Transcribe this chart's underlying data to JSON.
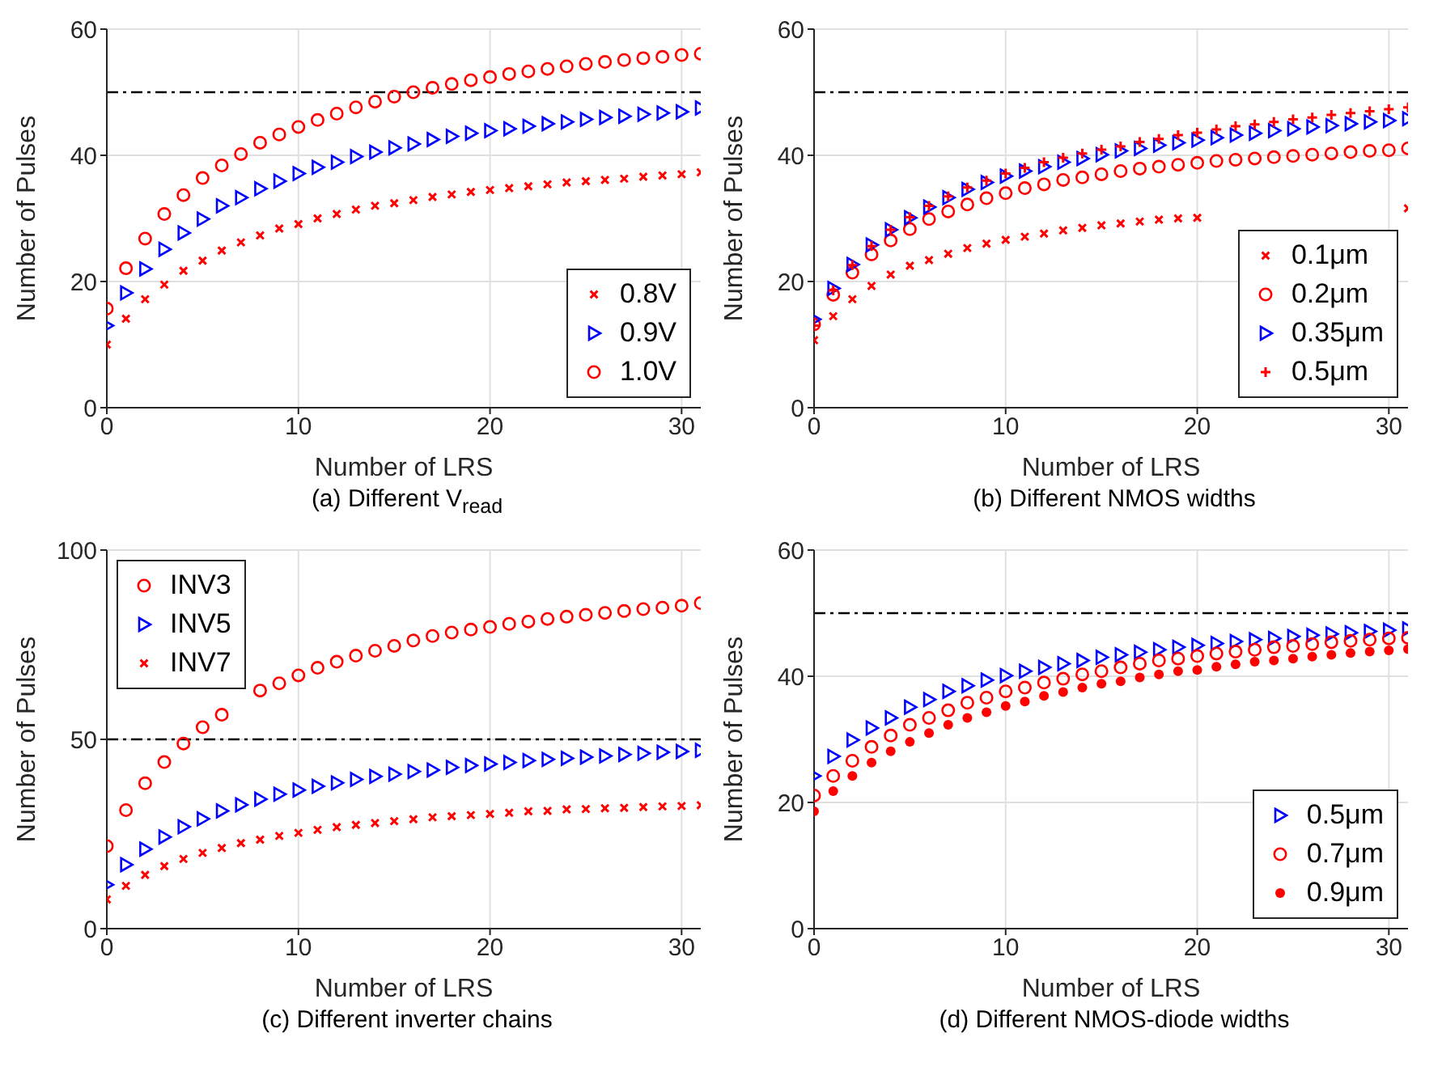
{
  "chart_data": [
    {
      "type": "scatter",
      "title": "(a) Different V$_{read}$",
      "xlabel": "Number of LRS",
      "ylabel": "Number of Pulses",
      "xlim": [
        0,
        31
      ],
      "xticks": [
        0,
        10,
        20,
        30
      ],
      "ylim": [
        0,
        60
      ],
      "yticks": [
        0,
        20,
        40,
        60
      ],
      "grid": true,
      "legend": "bottom right",
      "ref_lines": [
        {
          "axis": "y",
          "value": 50,
          "color": "#000000",
          "line_style": "dashed"
        }
      ],
      "x": [
        0,
        1,
        2,
        3,
        4,
        5,
        6,
        7,
        8,
        9,
        10,
        11,
        12,
        13,
        14,
        15,
        16,
        17,
        18,
        19,
        20,
        21,
        22,
        23,
        24,
        25,
        26,
        27,
        28,
        29,
        30,
        31
      ],
      "series": [
        {
          "name": "0.8V",
          "color": "#ff0000",
          "marker": "cross",
          "values": [
            10.0,
            14.1,
            17.2,
            19.5,
            21.7,
            23.3,
            24.9,
            26.2,
            27.3,
            28.4,
            29.1,
            30.0,
            30.7,
            31.4,
            32.0,
            32.4,
            32.9,
            33.4,
            33.8,
            34.2,
            34.5,
            34.8,
            35.1,
            35.4,
            35.7,
            35.9,
            36.1,
            36.3,
            36.6,
            36.8,
            37.0,
            37.3
          ]
        },
        {
          "name": "0.9V",
          "color": "#0000ff",
          "marker": "triangle",
          "values": [
            13.0,
            18.2,
            22.0,
            25.1,
            27.7,
            29.9,
            32.0,
            33.3,
            34.7,
            35.9,
            37.1,
            38.1,
            38.9,
            39.8,
            40.5,
            41.2,
            41.8,
            42.5,
            43.0,
            43.5,
            43.9,
            44.2,
            44.6,
            45.0,
            45.3,
            45.7,
            46.0,
            46.2,
            46.5,
            46.7,
            46.9,
            47.5
          ]
        },
        {
          "name": "1.0V",
          "color": "#ff0000",
          "marker": "circle",
          "values": [
            15.7,
            22.1,
            26.8,
            30.7,
            33.7,
            36.4,
            38.4,
            40.2,
            42.0,
            43.3,
            44.5,
            45.6,
            46.6,
            47.6,
            48.5,
            49.3,
            50.0,
            50.7,
            51.3,
            51.9,
            52.4,
            52.9,
            53.3,
            53.7,
            54.1,
            54.5,
            54.8,
            55.1,
            55.4,
            55.6,
            55.9,
            56.1
          ]
        }
      ]
    },
    {
      "type": "scatter",
      "title": "(b) Different NMOS widths",
      "xlabel": "Number of LRS",
      "ylabel": "Number of Pulses",
      "xlim": [
        0,
        31
      ],
      "xticks": [
        0,
        10,
        20,
        30
      ],
      "ylim": [
        0,
        60
      ],
      "yticks": [
        0,
        20,
        40,
        60
      ],
      "grid": true,
      "legend": "bottom right",
      "ref_lines": [
        {
          "axis": "y",
          "value": 50,
          "color": "#000000",
          "line_style": "dashed"
        }
      ],
      "x": [
        0,
        1,
        2,
        3,
        4,
        5,
        6,
        7,
        8,
        9,
        10,
        11,
        12,
        13,
        14,
        15,
        16,
        17,
        18,
        19,
        20,
        21,
        22,
        23,
        24,
        25,
        26,
        27,
        28,
        29,
        30,
        31
      ],
      "series": [
        {
          "name": "0.1μm",
          "color": "#ff0000",
          "marker": "cross",
          "values": [
            10.7,
            14.5,
            17.2,
            19.3,
            21.1,
            22.5,
            23.4,
            24.4,
            25.3,
            26.0,
            26.6,
            27.1,
            27.6,
            28.1,
            28.5,
            28.9,
            29.2,
            29.5,
            29.8,
            30.0,
            30.1,
            null,
            null,
            null,
            null,
            null,
            null,
            null,
            null,
            null,
            null,
            31.6
          ]
        },
        {
          "name": "0.2μm",
          "color": "#ff0000",
          "marker": "circle",
          "values": [
            13.2,
            17.9,
            21.4,
            24.3,
            26.5,
            28.3,
            29.9,
            31.1,
            32.2,
            33.2,
            34.0,
            34.8,
            35.4,
            36.1,
            36.5,
            37.0,
            37.5,
            37.9,
            38.2,
            38.5,
            38.8,
            39.1,
            39.3,
            39.5,
            39.7,
            39.9,
            40.1,
            40.3,
            40.5,
            40.7,
            40.8,
            41.1
          ]
        },
        {
          "name": "0.35μm",
          "color": "#0000ff",
          "marker": "triangle",
          "values": [
            14.0,
            18.9,
            22.7,
            25.8,
            28.2,
            30.1,
            31.8,
            33.3,
            34.6,
            35.7,
            36.7,
            37.5,
            38.2,
            38.9,
            39.5,
            40.1,
            40.7,
            41.1,
            41.6,
            42.0,
            42.4,
            42.8,
            43.2,
            43.5,
            43.9,
            44.2,
            44.5,
            44.7,
            45.0,
            45.3,
            45.5,
            45.8
          ]
        },
        {
          "name": "0.5μm",
          "color": "#ff0000",
          "marker": "plus",
          "values": [
            13.0,
            18.6,
            22.6,
            25.6,
            28.2,
            30.2,
            32.0,
            33.5,
            34.9,
            36.0,
            37.1,
            38.0,
            38.9,
            39.6,
            40.3,
            40.9,
            41.4,
            42.1,
            42.6,
            43.2,
            43.6,
            44.1,
            44.6,
            44.9,
            45.3,
            45.7,
            46.0,
            46.4,
            46.7,
            47.0,
            47.3,
            47.6
          ]
        }
      ]
    },
    {
      "type": "scatter",
      "title": "(c) Different inverter chains",
      "xlabel": "Number of LRS",
      "ylabel": "Number of Pulses",
      "xlim": [
        0,
        31
      ],
      "xticks": [
        0,
        10,
        20,
        30
      ],
      "ylim": [
        0,
        100
      ],
      "yticks": [
        0,
        50,
        100
      ],
      "grid": true,
      "legend": "top left",
      "ref_lines": [
        {
          "axis": "y",
          "value": 50,
          "color": "#000000",
          "line_style": "dashed"
        }
      ],
      "x": [
        0,
        1,
        2,
        3,
        4,
        5,
        6,
        7,
        8,
        9,
        10,
        11,
        12,
        13,
        14,
        15,
        16,
        17,
        18,
        19,
        20,
        21,
        22,
        23,
        24,
        25,
        26,
        27,
        28,
        29,
        30,
        31
      ],
      "series": [
        {
          "name": "INV3",
          "color": "#ff0000",
          "marker": "circle",
          "values": [
            21.8,
            31.3,
            38.4,
            44.0,
            48.9,
            53.2,
            56.5,
            null,
            62.9,
            64.8,
            66.9,
            68.9,
            70.5,
            72.1,
            73.4,
            74.7,
            76.1,
            77.3,
            78.2,
            79.0,
            79.7,
            80.5,
            81.1,
            81.8,
            82.4,
            82.9,
            83.4,
            83.9,
            84.4,
            84.8,
            85.3,
            86.0
          ]
        },
        {
          "name": "INV5",
          "color": "#0000ff",
          "marker": "triangle",
          "values": [
            11.6,
            16.9,
            21.0,
            24.2,
            26.9,
            29.0,
            31.1,
            32.7,
            34.2,
            35.5,
            36.6,
            37.6,
            38.5,
            39.4,
            40.2,
            40.8,
            41.5,
            41.9,
            42.6,
            43.1,
            43.5,
            43.9,
            44.4,
            44.7,
            45.0,
            45.3,
            45.6,
            46.0,
            46.3,
            46.6,
            46.8,
            47.1
          ]
        },
        {
          "name": "INV7",
          "color": "#ff0000",
          "marker": "cross",
          "values": [
            7.7,
            11.3,
            14.2,
            16.5,
            18.4,
            20.0,
            21.3,
            22.6,
            23.5,
            24.5,
            25.3,
            26.1,
            26.8,
            27.4,
            27.9,
            28.4,
            28.9,
            29.4,
            29.7,
            30.0,
            30.3,
            30.6,
            31.0,
            31.1,
            31.5,
            31.6,
            31.8,
            31.9,
            32.1,
            32.3,
            32.4,
            32.6
          ]
        }
      ]
    },
    {
      "type": "scatter",
      "title": "(d) Different NMOS-diode widths",
      "xlabel": "Number of LRS",
      "ylabel": "Number of Pulses",
      "xlim": [
        0,
        31
      ],
      "xticks": [
        0,
        10,
        20,
        30
      ],
      "ylim": [
        0,
        60
      ],
      "yticks": [
        0,
        20,
        40,
        60
      ],
      "grid": true,
      "legend": "bottom right",
      "ref_lines": [
        {
          "axis": "y",
          "value": 50,
          "color": "#000000",
          "line_style": "dashed"
        }
      ],
      "x": [
        0,
        1,
        2,
        3,
        4,
        5,
        6,
        7,
        8,
        9,
        10,
        11,
        12,
        13,
        14,
        15,
        16,
        17,
        18,
        19,
        20,
        21,
        22,
        23,
        24,
        25,
        26,
        27,
        28,
        29,
        30,
        31
      ],
      "series": [
        {
          "name": "0.5μm",
          "color": "#0000ff",
          "marker": "triangle",
          "values": [
            24.2,
            27.3,
            29.9,
            31.8,
            33.4,
            35.1,
            36.3,
            37.6,
            38.5,
            39.4,
            40.1,
            40.8,
            41.4,
            42.0,
            42.5,
            43.0,
            43.4,
            43.8,
            44.2,
            44.6,
            44.9,
            45.2,
            45.5,
            45.8,
            46.0,
            46.3,
            46.5,
            46.7,
            46.9,
            47.1,
            47.3,
            47.5
          ]
        },
        {
          "name": "0.7μm",
          "color": "#ff0000",
          "marker": "circle",
          "values": [
            21.1,
            24.2,
            26.6,
            28.8,
            30.6,
            32.3,
            33.4,
            34.6,
            35.8,
            36.6,
            37.6,
            38.2,
            39.0,
            39.6,
            40.3,
            40.8,
            41.4,
            42.0,
            42.5,
            42.8,
            43.2,
            43.6,
            43.9,
            44.2,
            44.6,
            44.8,
            45.1,
            45.4,
            45.6,
            45.8,
            46.0,
            46.1
          ]
        },
        {
          "name": "0.9μm",
          "color": "#ff0000",
          "marker": "dot",
          "values": [
            18.6,
            21.8,
            24.2,
            26.3,
            28.1,
            29.6,
            31.0,
            32.3,
            33.4,
            34.3,
            35.3,
            36.0,
            36.9,
            37.5,
            38.2,
            38.8,
            39.2,
            39.8,
            40.3,
            40.8,
            41.0,
            41.5,
            41.9,
            42.3,
            42.5,
            42.8,
            43.1,
            43.4,
            43.7,
            43.9,
            44.1,
            44.3
          ]
        }
      ]
    }
  ]
}
